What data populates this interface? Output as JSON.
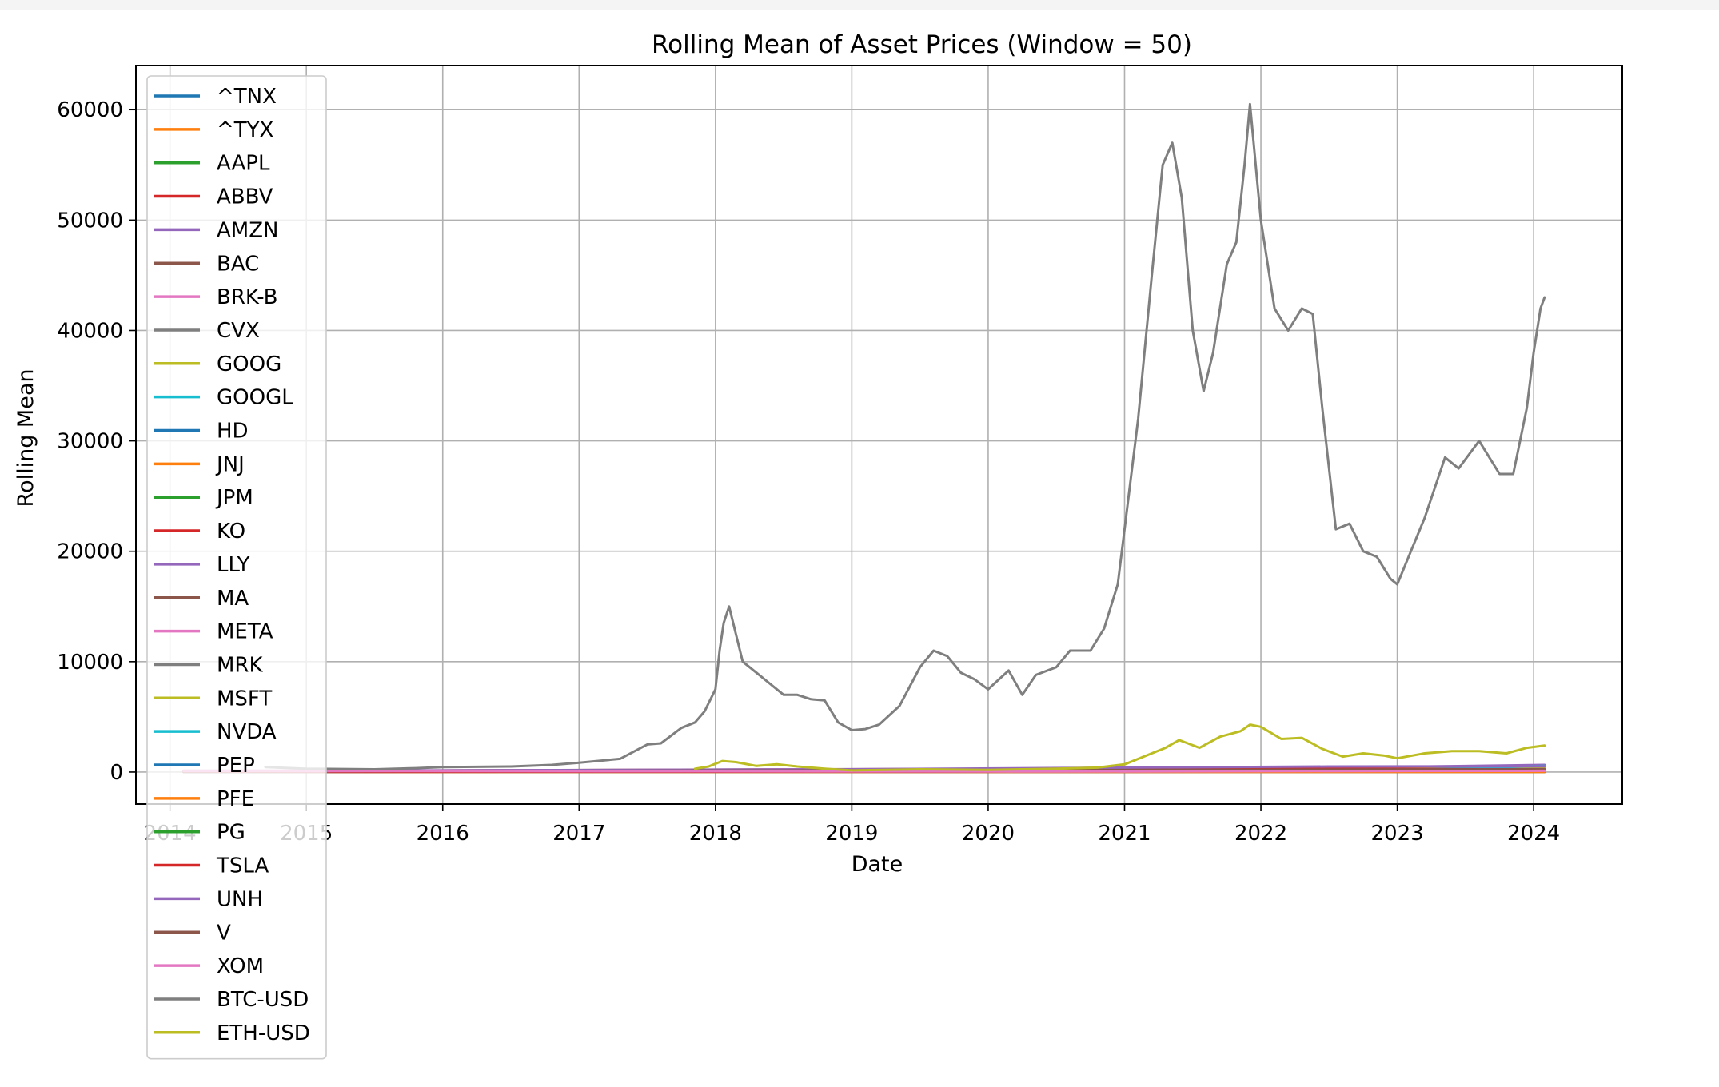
{
  "chart_data": {
    "type": "line",
    "title": "Rolling Mean of Asset Prices (Window = 50)",
    "xlabel": "Date",
    "ylabel": "Rolling Mean",
    "xlim": [
      2013.75,
      2024.65
    ],
    "ylim": [
      -2900,
      64000
    ],
    "x_ticks": [
      "2014",
      "2015",
      "2016",
      "2017",
      "2018",
      "2019",
      "2020",
      "2021",
      "2022",
      "2023",
      "2024"
    ],
    "y_ticks": [
      "0",
      "10000",
      "20000",
      "30000",
      "40000",
      "50000",
      "60000"
    ],
    "grid": true,
    "legend_position": "upper-left",
    "colors": {
      "^TNX": "#1f77b4",
      "^TYX": "#ff7f0e",
      "AAPL": "#2ca02c",
      "ABBV": "#d62728",
      "AMZN": "#9467bd",
      "BAC": "#8c564b",
      "BRK-B": "#e377c2",
      "CVX": "#7f7f7f",
      "GOOG": "#bcbd22",
      "GOOGL": "#17becf",
      "HD": "#1f77b4",
      "JNJ": "#ff7f0e",
      "JPM": "#2ca02c",
      "KO": "#d62728",
      "LLY": "#9467bd",
      "MA": "#8c564b",
      "META": "#e377c2",
      "MRK": "#7f7f7f",
      "MSFT": "#bcbd22",
      "NVDA": "#17becf",
      "PEP": "#1f77b4",
      "PFE": "#ff7f0e",
      "PG": "#2ca02c",
      "TSLA": "#d62728",
      "UNH": "#9467bd",
      "V": "#8c564b",
      "XOM": "#e377c2",
      "BTC-USD": "#7f7f7f",
      "ETH-USD": "#bcbd22"
    },
    "series": [
      {
        "name": "^TNX",
        "x": [
          2014.1,
          2024.08
        ],
        "values": [
          2,
          4
        ]
      },
      {
        "name": "^TYX",
        "x": [
          2014.1,
          2024.08
        ],
        "values": [
          3,
          4
        ]
      },
      {
        "name": "AAPL",
        "x": [
          2014.1,
          2017.0,
          2021.0,
          2024.08
        ],
        "values": [
          25,
          35,
          130,
          185
        ]
      },
      {
        "name": "ABBV",
        "x": [
          2014.1,
          2019.0,
          2024.08
        ],
        "values": [
          50,
          80,
          155
        ]
      },
      {
        "name": "AMZN",
        "x": [
          2014.1,
          2018.0,
          2021.0,
          2024.08
        ],
        "values": [
          18,
          60,
          160,
          150
        ]
      },
      {
        "name": "BAC",
        "x": [
          2014.1,
          2024.08
        ],
        "values": [
          15,
          33
        ]
      },
      {
        "name": "BRK-B",
        "x": [
          2014.1,
          2019.0,
          2024.08
        ],
        "values": [
          120,
          200,
          360
        ]
      },
      {
        "name": "CVX",
        "x": [
          2014.1,
          2020.3,
          2024.08
        ],
        "values": [
          110,
          70,
          150
        ]
      },
      {
        "name": "GOOG",
        "x": [
          2014.1,
          2019.0,
          2021.5,
          2024.08
        ],
        "values": [
          28,
          55,
          140,
          140
        ]
      },
      {
        "name": "GOOGL",
        "x": [
          2014.1,
          2019.0,
          2021.5,
          2024.08
        ],
        "values": [
          28,
          55,
          140,
          140
        ]
      },
      {
        "name": "HD",
        "x": [
          2014.1,
          2018.0,
          2021.5,
          2024.08
        ],
        "values": [
          85,
          180,
          350,
          360
        ]
      },
      {
        "name": "JNJ",
        "x": [
          2014.1,
          2019.0,
          2024.08
        ],
        "values": [
          95,
          135,
          160
        ]
      },
      {
        "name": "JPM",
        "x": [
          2014.1,
          2019.0,
          2024.08
        ],
        "values": [
          55,
          110,
          170
        ]
      },
      {
        "name": "KO",
        "x": [
          2014.1,
          2024.08
        ],
        "values": [
          40,
          60
        ]
      },
      {
        "name": "LLY",
        "x": [
          2014.1,
          2019.0,
          2022.0,
          2024.08
        ],
        "values": [
          60,
          115,
          300,
          650
        ]
      },
      {
        "name": "MA",
        "x": [
          2014.1,
          2019.0,
          2024.08
        ],
        "values": [
          75,
          260,
          420
        ]
      },
      {
        "name": "META",
        "x": [
          2014.1,
          2021.6,
          2022.9,
          2024.08
        ],
        "values": [
          70,
          350,
          130,
          380
        ]
      },
      {
        "name": "MRK",
        "x": [
          2014.1,
          2024.08
        ],
        "values": [
          55,
          120
        ]
      },
      {
        "name": "MSFT",
        "x": [
          2014.1,
          2019.0,
          2024.08
        ],
        "values": [
          40,
          130,
          390
        ]
      },
      {
        "name": "NVDA",
        "x": [
          2014.1,
          2021.5,
          2022.9,
          2024.08
        ],
        "values": [
          5,
          200,
          150,
          550
        ]
      },
      {
        "name": "PEP",
        "x": [
          2014.1,
          2024.08
        ],
        "values": [
          90,
          170
        ]
      },
      {
        "name": "PFE",
        "x": [
          2014.1,
          2024.08
        ],
        "values": [
          30,
          30
        ]
      },
      {
        "name": "PG",
        "x": [
          2014.1,
          2024.08
        ],
        "values": [
          80,
          150
        ]
      },
      {
        "name": "TSLA",
        "x": [
          2014.1,
          2020.0,
          2021.9,
          2024.08
        ],
        "values": [
          15,
          50,
          350,
          220
        ]
      },
      {
        "name": "UNH",
        "x": [
          2014.1,
          2019.0,
          2022.5,
          2024.08
        ],
        "values": [
          75,
          250,
          500,
          520
        ]
      },
      {
        "name": "V",
        "x": [
          2014.1,
          2019.0,
          2024.08
        ],
        "values": [
          55,
          150,
          260
        ]
      },
      {
        "name": "XOM",
        "x": [
          2014.1,
          2020.5,
          2024.08
        ],
        "values": [
          95,
          45,
          110
        ]
      },
      {
        "name": "BTC-USD",
        "x": [
          2014.7,
          2015.0,
          2015.5,
          2015.8,
          2016.0,
          2016.5,
          2016.8,
          2017.0,
          2017.3,
          2017.5,
          2017.6,
          2017.75,
          2017.85,
          2017.92,
          2018.0,
          2018.03,
          2018.06,
          2018.1,
          2018.15,
          2018.2,
          2018.3,
          2018.4,
          2018.5,
          2018.6,
          2018.7,
          2018.8,
          2018.9,
          2019.0,
          2019.1,
          2019.2,
          2019.35,
          2019.5,
          2019.6,
          2019.7,
          2019.8,
          2019.9,
          2020.0,
          2020.15,
          2020.25,
          2020.35,
          2020.5,
          2020.6,
          2020.75,
          2020.85,
          2020.95,
          2021.0,
          2021.1,
          2021.2,
          2021.28,
          2021.35,
          2021.42,
          2021.5,
          2021.58,
          2021.65,
          2021.75,
          2021.82,
          2021.88,
          2021.92,
          2022.0,
          2022.1,
          2022.2,
          2022.3,
          2022.38,
          2022.45,
          2022.55,
          2022.65,
          2022.75,
          2022.85,
          2022.95,
          2023.0,
          2023.1,
          2023.2,
          2023.35,
          2023.45,
          2023.6,
          2023.75,
          2023.85,
          2023.95,
          2024.0,
          2024.05,
          2024.08
        ],
        "values": [
          450,
          300,
          250,
          350,
          450,
          500,
          650,
          850,
          1200,
          2500,
          2600,
          4000,
          4500,
          5500,
          7500,
          11000,
          13500,
          15000,
          12500,
          10000,
          9000,
          8000,
          7000,
          7000,
          6600,
          6500,
          4500,
          3800,
          3900,
          4300,
          6000,
          9500,
          11000,
          10500,
          9000,
          8400,
          7500,
          9200,
          7000,
          8800,
          9500,
          11000,
          11000,
          13000,
          17000,
          22000,
          32000,
          45000,
          55000,
          57000,
          52000,
          40000,
          34500,
          38000,
          46000,
          48000,
          55000,
          60500,
          50000,
          42000,
          40000,
          42000,
          41500,
          33000,
          22000,
          22500,
          20000,
          19500,
          17500,
          17000,
          20000,
          23000,
          28500,
          27500,
          30000,
          27000,
          27000,
          33000,
          38000,
          42000,
          43000
        ]
      },
      {
        "name": "ETH-USD",
        "x": [
          2017.85,
          2017.95,
          2018.05,
          2018.15,
          2018.3,
          2018.45,
          2018.6,
          2018.8,
          2019.0,
          2019.5,
          2020.0,
          2020.5,
          2020.8,
          2021.0,
          2021.2,
          2021.3,
          2021.4,
          2021.55,
          2021.7,
          2021.85,
          2021.92,
          2022.0,
          2022.15,
          2022.3,
          2022.45,
          2022.6,
          2022.75,
          2022.9,
          2023.0,
          2023.2,
          2023.4,
          2023.6,
          2023.8,
          2023.95,
          2024.08
        ],
        "values": [
          300,
          500,
          1000,
          900,
          550,
          700,
          500,
          300,
          150,
          250,
          200,
          300,
          400,
          700,
          1700,
          2200,
          2900,
          2200,
          3200,
          3700,
          4300,
          4100,
          3000,
          3100,
          2100,
          1400,
          1700,
          1500,
          1250,
          1700,
          1900,
          1900,
          1700,
          2200,
          2400
        ]
      }
    ]
  }
}
